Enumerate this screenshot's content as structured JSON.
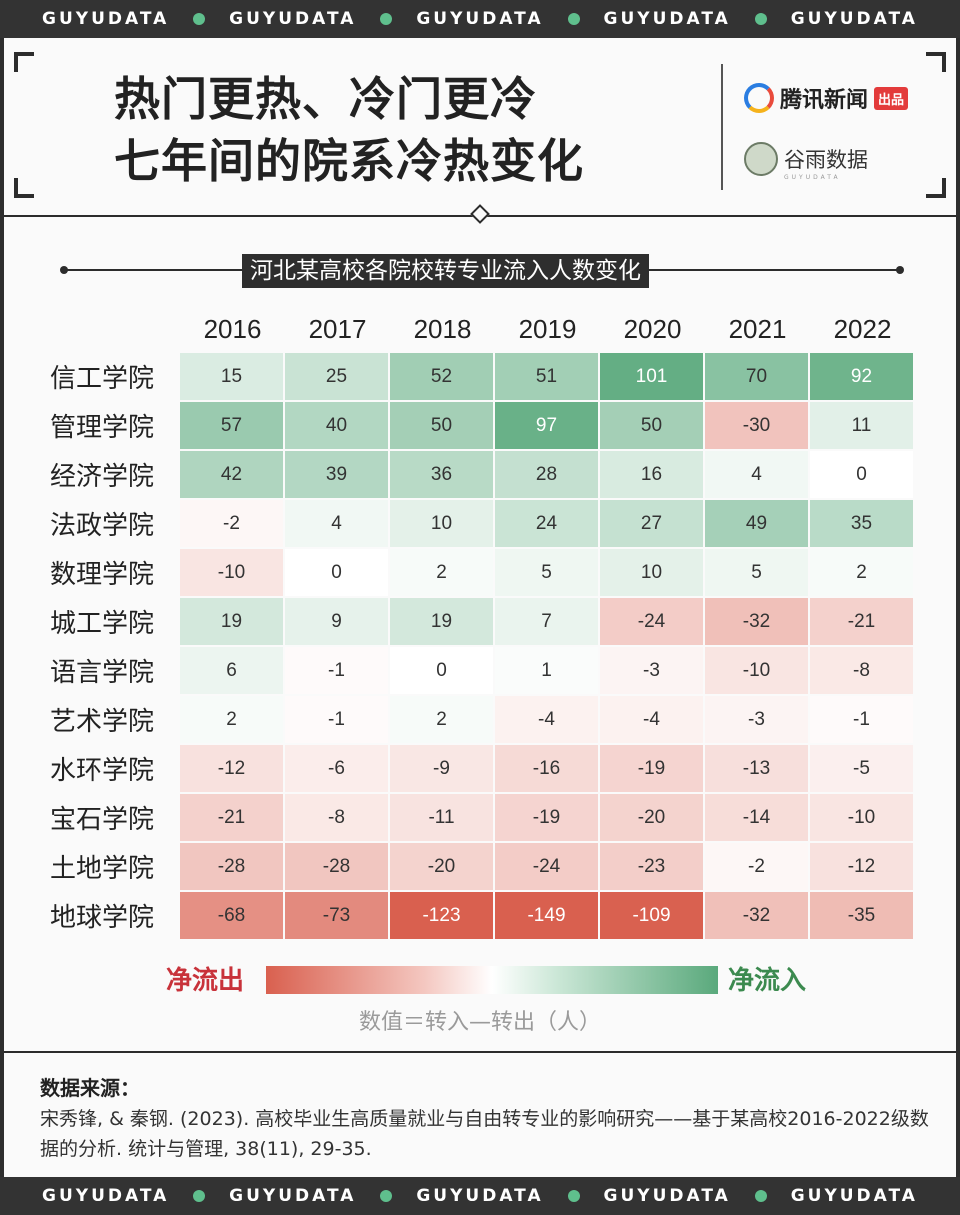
{
  "banner": {
    "word": "GUYUDATA",
    "repeat": 5
  },
  "header": {
    "title_line1": "热门更热、冷门更冷",
    "title_line2": "七年间的院系冷热变化",
    "logo1_name": "腾讯新闻",
    "logo1_tag": "出品",
    "logo2_name": "谷雨数据",
    "logo2_sub": "GUYUDATA"
  },
  "chart_data": {
    "type": "heatmap",
    "title": "河北某高校各院校转专业流入人数变化",
    "x": [
      "2016",
      "2017",
      "2018",
      "2019",
      "2020",
      "2021",
      "2022"
    ],
    "y": [
      "信工学院",
      "管理学院",
      "经济学院",
      "法政学院",
      "数理学院",
      "城工学院",
      "语言学院",
      "艺术学院",
      "水环学院",
      "宝石学院",
      "土地学院",
      "地球学院"
    ],
    "values": [
      [
        15,
        25,
        52,
        51,
        101,
        70,
        92
      ],
      [
        57,
        40,
        50,
        97,
        50,
        -30,
        11
      ],
      [
        42,
        39,
        36,
        28,
        16,
        4,
        0
      ],
      [
        -2,
        4,
        10,
        24,
        27,
        49,
        35
      ],
      [
        -10,
        0,
        2,
        5,
        10,
        5,
        2
      ],
      [
        19,
        9,
        19,
        7,
        -24,
        -32,
        -21
      ],
      [
        6,
        -1,
        0,
        1,
        -3,
        -10,
        -8
      ],
      [
        2,
        -1,
        2,
        -4,
        -4,
        -3,
        -1
      ],
      [
        -12,
        -6,
        -9,
        -16,
        -19,
        -13,
        -5
      ],
      [
        -21,
        -8,
        -11,
        -19,
        -20,
        -14,
        -10
      ],
      [
        -28,
        -28,
        -20,
        -24,
        -23,
        -2,
        -12
      ],
      [
        -68,
        -73,
        -123,
        -149,
        -109,
        -32,
        -35
      ]
    ],
    "legend": {
      "negative_label": "净流出",
      "positive_label": "净流入",
      "note": "数值＝转入—转出（人）"
    },
    "colors": {
      "positive": "#5aa97c",
      "negative": "#d9604f",
      "neutral": "#ffffff"
    }
  },
  "source": {
    "title": "数据来源：",
    "text": "宋秀锋, & 秦钢. (2023). 高校毕业生高质量就业与自由转专业的影响研究——基于某高校2016-2022级数据的分析. 统计与管理, 38(11), 29-35."
  }
}
